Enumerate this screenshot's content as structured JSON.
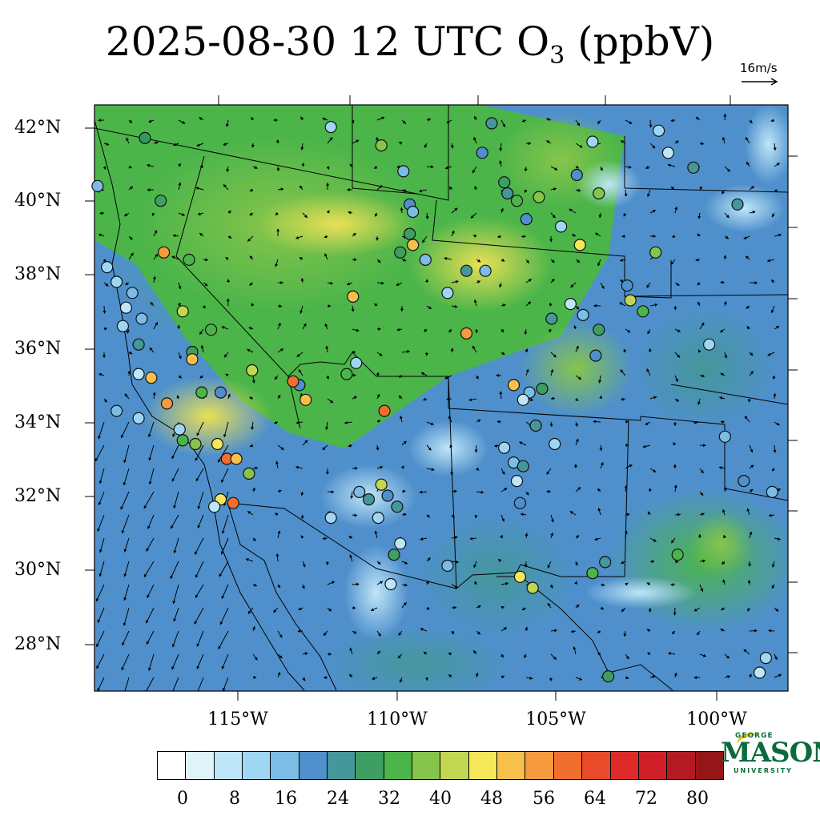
{
  "title": {
    "main": "2025-08-30 12 UTC O",
    "subscript": "3",
    "suffix": " (ppbV)"
  },
  "wind_reference": {
    "label": "16m/s"
  },
  "axes": {
    "lat_labels": [
      "42°N",
      "40°N",
      "38°N",
      "36°N",
      "34°N",
      "32°N",
      "30°N",
      "28°N"
    ],
    "lon_labels": [
      "115°W",
      "110°W",
      "105°W",
      "100°W"
    ]
  },
  "colorbar": {
    "colors": [
      "#ffffff",
      "#dff3fb",
      "#bfe6f8",
      "#9fd6f3",
      "#7cbde6",
      "#4f90cc",
      "#45979b",
      "#3f9f62",
      "#4bb54a",
      "#86c54b",
      "#c2d751",
      "#f6e65a",
      "#f7c04a",
      "#f59b3e",
      "#f06e2f",
      "#e84a2a",
      "#df2a2a",
      "#cf1e28",
      "#b31a22",
      "#951519"
    ],
    "labels": [
      "0",
      "8",
      "16",
      "24",
      "32",
      "40",
      "48",
      "56",
      "64",
      "72",
      "80"
    ]
  },
  "logo": {
    "top": "GEORGE",
    "main": "MASON",
    "bottom": "UNIVERSITY"
  },
  "stations": [
    [
      "#2f9a5d",
      -118.4,
      41.8
    ],
    [
      "#7cbde6",
      -119.9,
      40.5
    ],
    [
      "#3f9f62",
      -117.9,
      40.1
    ],
    [
      "#9fd6f3",
      -119.6,
      38.3
    ],
    [
      "#f59b3e",
      -117.8,
      38.7
    ],
    [
      "#4bb54a",
      -117.0,
      38.5
    ],
    [
      "#9fd6f3",
      -119.3,
      37.9
    ],
    [
      "#7cbde6",
      -118.8,
      37.6
    ],
    [
      "#bfe6f8",
      -119.0,
      37.2
    ],
    [
      "#7cbde6",
      -118.5,
      36.9
    ],
    [
      "#9fd6f3",
      -119.1,
      36.7
    ],
    [
      "#45979b",
      -118.6,
      36.2
    ],
    [
      "#c2d751",
      -117.2,
      37.1
    ],
    [
      "#4bb54a",
      -116.3,
      36.6
    ],
    [
      "#3f9f62",
      -116.9,
      36.0
    ],
    [
      "#f7c04a",
      -116.9,
      35.8
    ],
    [
      "#bfe6f8",
      -118.6,
      35.4
    ],
    [
      "#f7c04a",
      -118.2,
      35.3
    ],
    [
      "#f59b3e",
      -117.7,
      34.6
    ],
    [
      "#4bb54a",
      -116.6,
      34.9
    ],
    [
      "#7cbde6",
      -119.3,
      34.4
    ],
    [
      "#9fd6f3",
      -118.6,
      34.2
    ],
    [
      "#4bb54a",
      -117.2,
      33.6
    ],
    [
      "#86c54b",
      -116.8,
      33.5
    ],
    [
      "#f6e65a",
      -116.1,
      33.5
    ],
    [
      "#f06e2f",
      -115.8,
      33.1
    ],
    [
      "#f7c04a",
      -115.5,
      33.1
    ],
    [
      "#86c54b",
      -115.1,
      32.7
    ],
    [
      "#f6e65a",
      -116.0,
      32.0
    ],
    [
      "#f06e2f",
      -115.6,
      31.9
    ],
    [
      "#bfe6f8",
      -116.2,
      31.8
    ],
    [
      "#9fd6f3",
      -117.3,
      33.9
    ],
    [
      "#4f90cc",
      -116.0,
      34.9
    ],
    [
      "#c2d751",
      -115.0,
      35.5
    ],
    [
      "#4f90cc",
      -113.5,
      35.1
    ],
    [
      "#f06e2f",
      -113.7,
      35.2
    ],
    [
      "#f7c04a",
      -113.3,
      34.7
    ],
    [
      "#4bb54a",
      -112.0,
      35.4
    ],
    [
      "#9fd6f3",
      -111.7,
      35.7
    ],
    [
      "#f06e2f",
      -110.8,
      34.4
    ],
    [
      "#f7c04a",
      -111.8,
      37.5
    ],
    [
      "#86c54b",
      -110.9,
      41.6
    ],
    [
      "#9fd6f3",
      -112.5,
      42.1
    ],
    [
      "#7cbde6",
      -110.2,
      40.9
    ],
    [
      "#4f90cc",
      -110.0,
      40.0
    ],
    [
      "#7cbde6",
      -109.9,
      39.8
    ],
    [
      "#3f9f62",
      -110.0,
      39.2
    ],
    [
      "#f7c04a",
      -109.9,
      38.9
    ],
    [
      "#3f9f62",
      -110.3,
      38.7
    ],
    [
      "#7cbde6",
      -109.5,
      38.5
    ],
    [
      "#9fd6f3",
      -108.8,
      37.6
    ],
    [
      "#45979b",
      -108.2,
      38.2
    ],
    [
      "#7cbde6",
      -107.6,
      38.2
    ],
    [
      "#f59b3e",
      -108.2,
      36.5
    ],
    [
      "#45979b",
      -107.4,
      42.2
    ],
    [
      "#4f90cc",
      -107.7,
      41.4
    ],
    [
      "#3f9f62",
      -107.0,
      40.6
    ],
    [
      "#45979b",
      -106.9,
      40.3
    ],
    [
      "#4bb54a",
      -106.6,
      40.1
    ],
    [
      "#86c54b",
      -105.9,
      40.2
    ],
    [
      "#4f90cc",
      -106.3,
      39.6
    ],
    [
      "#9fd6f3",
      -105.2,
      39.4
    ],
    [
      "#bfe6f8",
      -104.9,
      37.3
    ],
    [
      "#7cbde6",
      -104.5,
      37.0
    ],
    [
      "#45979b",
      -105.5,
      36.9
    ],
    [
      "#f6e65a",
      -104.6,
      38.9
    ],
    [
      "#86c54b",
      -104.0,
      40.3
    ],
    [
      "#9fd6f3",
      -104.2,
      41.7
    ],
    [
      "#4f90cc",
      -104.7,
      40.8
    ],
    [
      "#9fd6f3",
      -102.1,
      42.0
    ],
    [
      "#bfe6f8",
      -101.8,
      41.4
    ],
    [
      "#45979b",
      -101.0,
      41.0
    ],
    [
      "#4f90cc",
      -103.1,
      37.8
    ],
    [
      "#c2d751",
      -103.0,
      37.4
    ],
    [
      "#4bb54a",
      -102.6,
      37.1
    ],
    [
      "#86c54b",
      -102.2,
      38.7
    ],
    [
      "#45979b",
      -99.6,
      40.0
    ],
    [
      "#9fd6f3",
      -100.5,
      36.2
    ],
    [
      "#7cbde6",
      -100.0,
      33.7
    ],
    [
      "#4f90cc",
      -99.4,
      32.5
    ],
    [
      "#7cbde6",
      -98.5,
      32.2
    ],
    [
      "#4bb54a",
      -101.5,
      30.5
    ],
    [
      "#4bb54a",
      -104.2,
      30.0
    ],
    [
      "#45979b",
      -103.8,
      30.3
    ],
    [
      "#4f90cc",
      -106.5,
      31.9
    ],
    [
      "#f6e65a",
      -106.5,
      29.9
    ],
    [
      "#c2d751",
      -106.1,
      29.6
    ],
    [
      "#3f9f62",
      -103.7,
      27.2
    ],
    [
      "#bfe6f8",
      -98.9,
      27.3
    ],
    [
      "#9fd6f3",
      -98.7,
      27.7
    ],
    [
      "#bfe6f8",
      -110.3,
      30.8
    ],
    [
      "#45979b",
      -110.4,
      31.8
    ],
    [
      "#c2d751",
      -110.9,
      32.4
    ],
    [
      "#4f90cc",
      -110.7,
      32.1
    ],
    [
      "#45979b",
      -111.3,
      32.0
    ],
    [
      "#9fd6f3",
      -111.0,
      31.5
    ],
    [
      "#3f9f62",
      -110.5,
      30.5
    ],
    [
      "#7cbde6",
      -111.6,
      32.2
    ],
    [
      "#bfe6f8",
      -110.6,
      29.7
    ],
    [
      "#9fd6f3",
      -112.5,
      31.5
    ],
    [
      "#7cbde6",
      -108.8,
      30.2
    ],
    [
      "#9fd6f3",
      -107.0,
      33.4
    ],
    [
      "#7cbde6",
      -106.7,
      33.0
    ],
    [
      "#45979b",
      -106.4,
      32.9
    ],
    [
      "#bfe6f8",
      -106.6,
      32.5
    ],
    [
      "#45979b",
      -106.0,
      34.0
    ],
    [
      "#9fd6f3",
      -105.4,
      33.5
    ],
    [
      "#f7c04a",
      -106.7,
      35.1
    ],
    [
      "#7cbde6",
      -106.2,
      34.9
    ],
    [
      "#bfe6f8",
      -106.4,
      34.7
    ],
    [
      "#3f9f62",
      -105.8,
      35.0
    ],
    [
      "#4f90cc",
      -104.1,
      35.9
    ],
    [
      "#3f9f62",
      -104.0,
      36.6
    ]
  ]
}
